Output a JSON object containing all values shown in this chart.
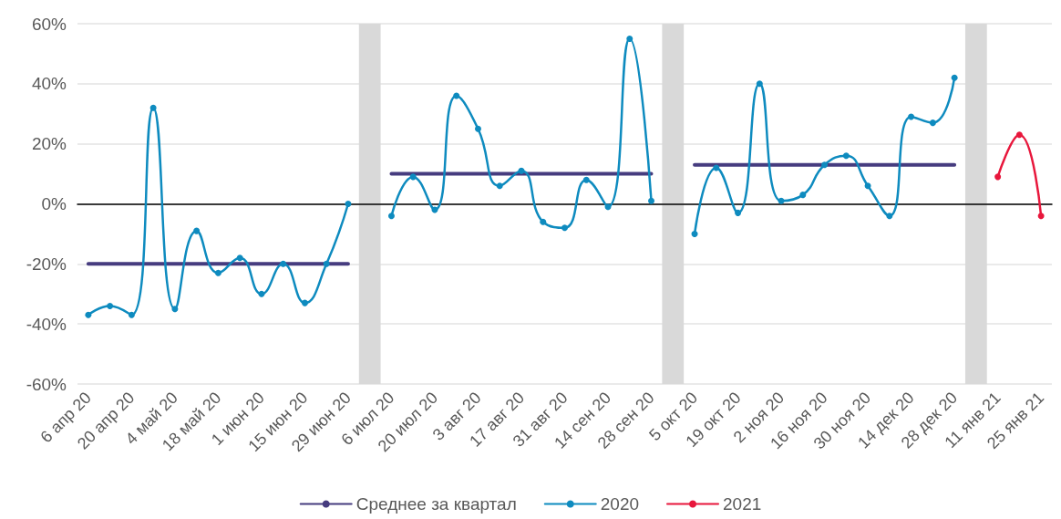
{
  "chart_data": {
    "type": "line",
    "categories": [
      "6 апр 20",
      null,
      "20 апр 20",
      null,
      "4 май 20",
      null,
      "18 май 20",
      null,
      "1 июн 20",
      null,
      "15 июн 20",
      null,
      "29 июн 20",
      null,
      "6 июл 20",
      null,
      "20 июл 20",
      null,
      "3 авг 20",
      null,
      "17 авг 20",
      null,
      "31 авг 20",
      null,
      "14 сен 20",
      null,
      "28 сен 20",
      null,
      "5 окт 20",
      null,
      "19 окт 20",
      null,
      "2 ноя 20",
      null,
      "16 ноя 20",
      null,
      "30 ноя 20",
      null,
      "14 дек 20",
      null,
      "28 дек 20",
      null,
      "11 янв 21",
      null,
      "25 янв 21"
    ],
    "series": [
      {
        "name": "Среднее за квартал",
        "color": "#463c7f",
        "marker": "none",
        "values": [
          -20,
          -20,
          -20,
          -20,
          -20,
          -20,
          -20,
          -20,
          -20,
          -20,
          -20,
          -20,
          -20,
          null,
          10,
          10,
          10,
          10,
          10,
          10,
          10,
          10,
          10,
          10,
          10,
          10,
          10,
          null,
          13,
          13,
          13,
          13,
          13,
          13,
          13,
          13,
          13,
          13,
          13,
          13,
          13,
          null,
          null,
          null,
          null
        ]
      },
      {
        "name": "2020",
        "color": "#0e8bbf",
        "marker": "circle",
        "values": [
          -37,
          -34,
          -37,
          32,
          -35,
          -9,
          -23,
          -18,
          -30,
          -20,
          -33,
          -20,
          0,
          null,
          -4,
          9,
          -2,
          36,
          25,
          6,
          11,
          -6,
          -8,
          8,
          -1,
          55,
          1,
          null,
          -10,
          12,
          -3,
          40,
          1,
          3,
          13,
          16,
          6,
          -4,
          29,
          27,
          42,
          null,
          null,
          null,
          null
        ]
      },
      {
        "name": "2021",
        "color": "#e8173c",
        "marker": "circle",
        "values": [
          null,
          null,
          null,
          null,
          null,
          null,
          null,
          null,
          null,
          null,
          null,
          null,
          null,
          null,
          null,
          null,
          null,
          null,
          null,
          null,
          null,
          null,
          null,
          null,
          null,
          null,
          null,
          null,
          null,
          null,
          null,
          null,
          null,
          null,
          null,
          null,
          null,
          null,
          null,
          null,
          null,
          null,
          9,
          23,
          -4
        ]
      }
    ],
    "ylim": [
      -60,
      60
    ],
    "yticks": [
      {
        "value": -60,
        "label": "-60%"
      },
      {
        "value": -40,
        "label": "-40%"
      },
      {
        "value": -20,
        "label": "-20%"
      },
      {
        "value": 0,
        "label": "0%"
      },
      {
        "value": 20,
        "label": "20%"
      },
      {
        "value": 40,
        "label": "40%"
      },
      {
        "value": 60,
        "label": "60%"
      }
    ],
    "bands": [
      {
        "axis": "x",
        "from": "29 июн 20",
        "to": "6 июл 20",
        "color": "#d9d9d9"
      },
      {
        "axis": "x",
        "from": "28 сен 20",
        "to": "5 окт 20",
        "color": "#d9d9d9"
      },
      {
        "axis": "x",
        "from": "28 дек 20",
        "to": "11 янв 21",
        "color": "#d9d9d9"
      }
    ],
    "grid": "y",
    "legend": "bottom"
  }
}
